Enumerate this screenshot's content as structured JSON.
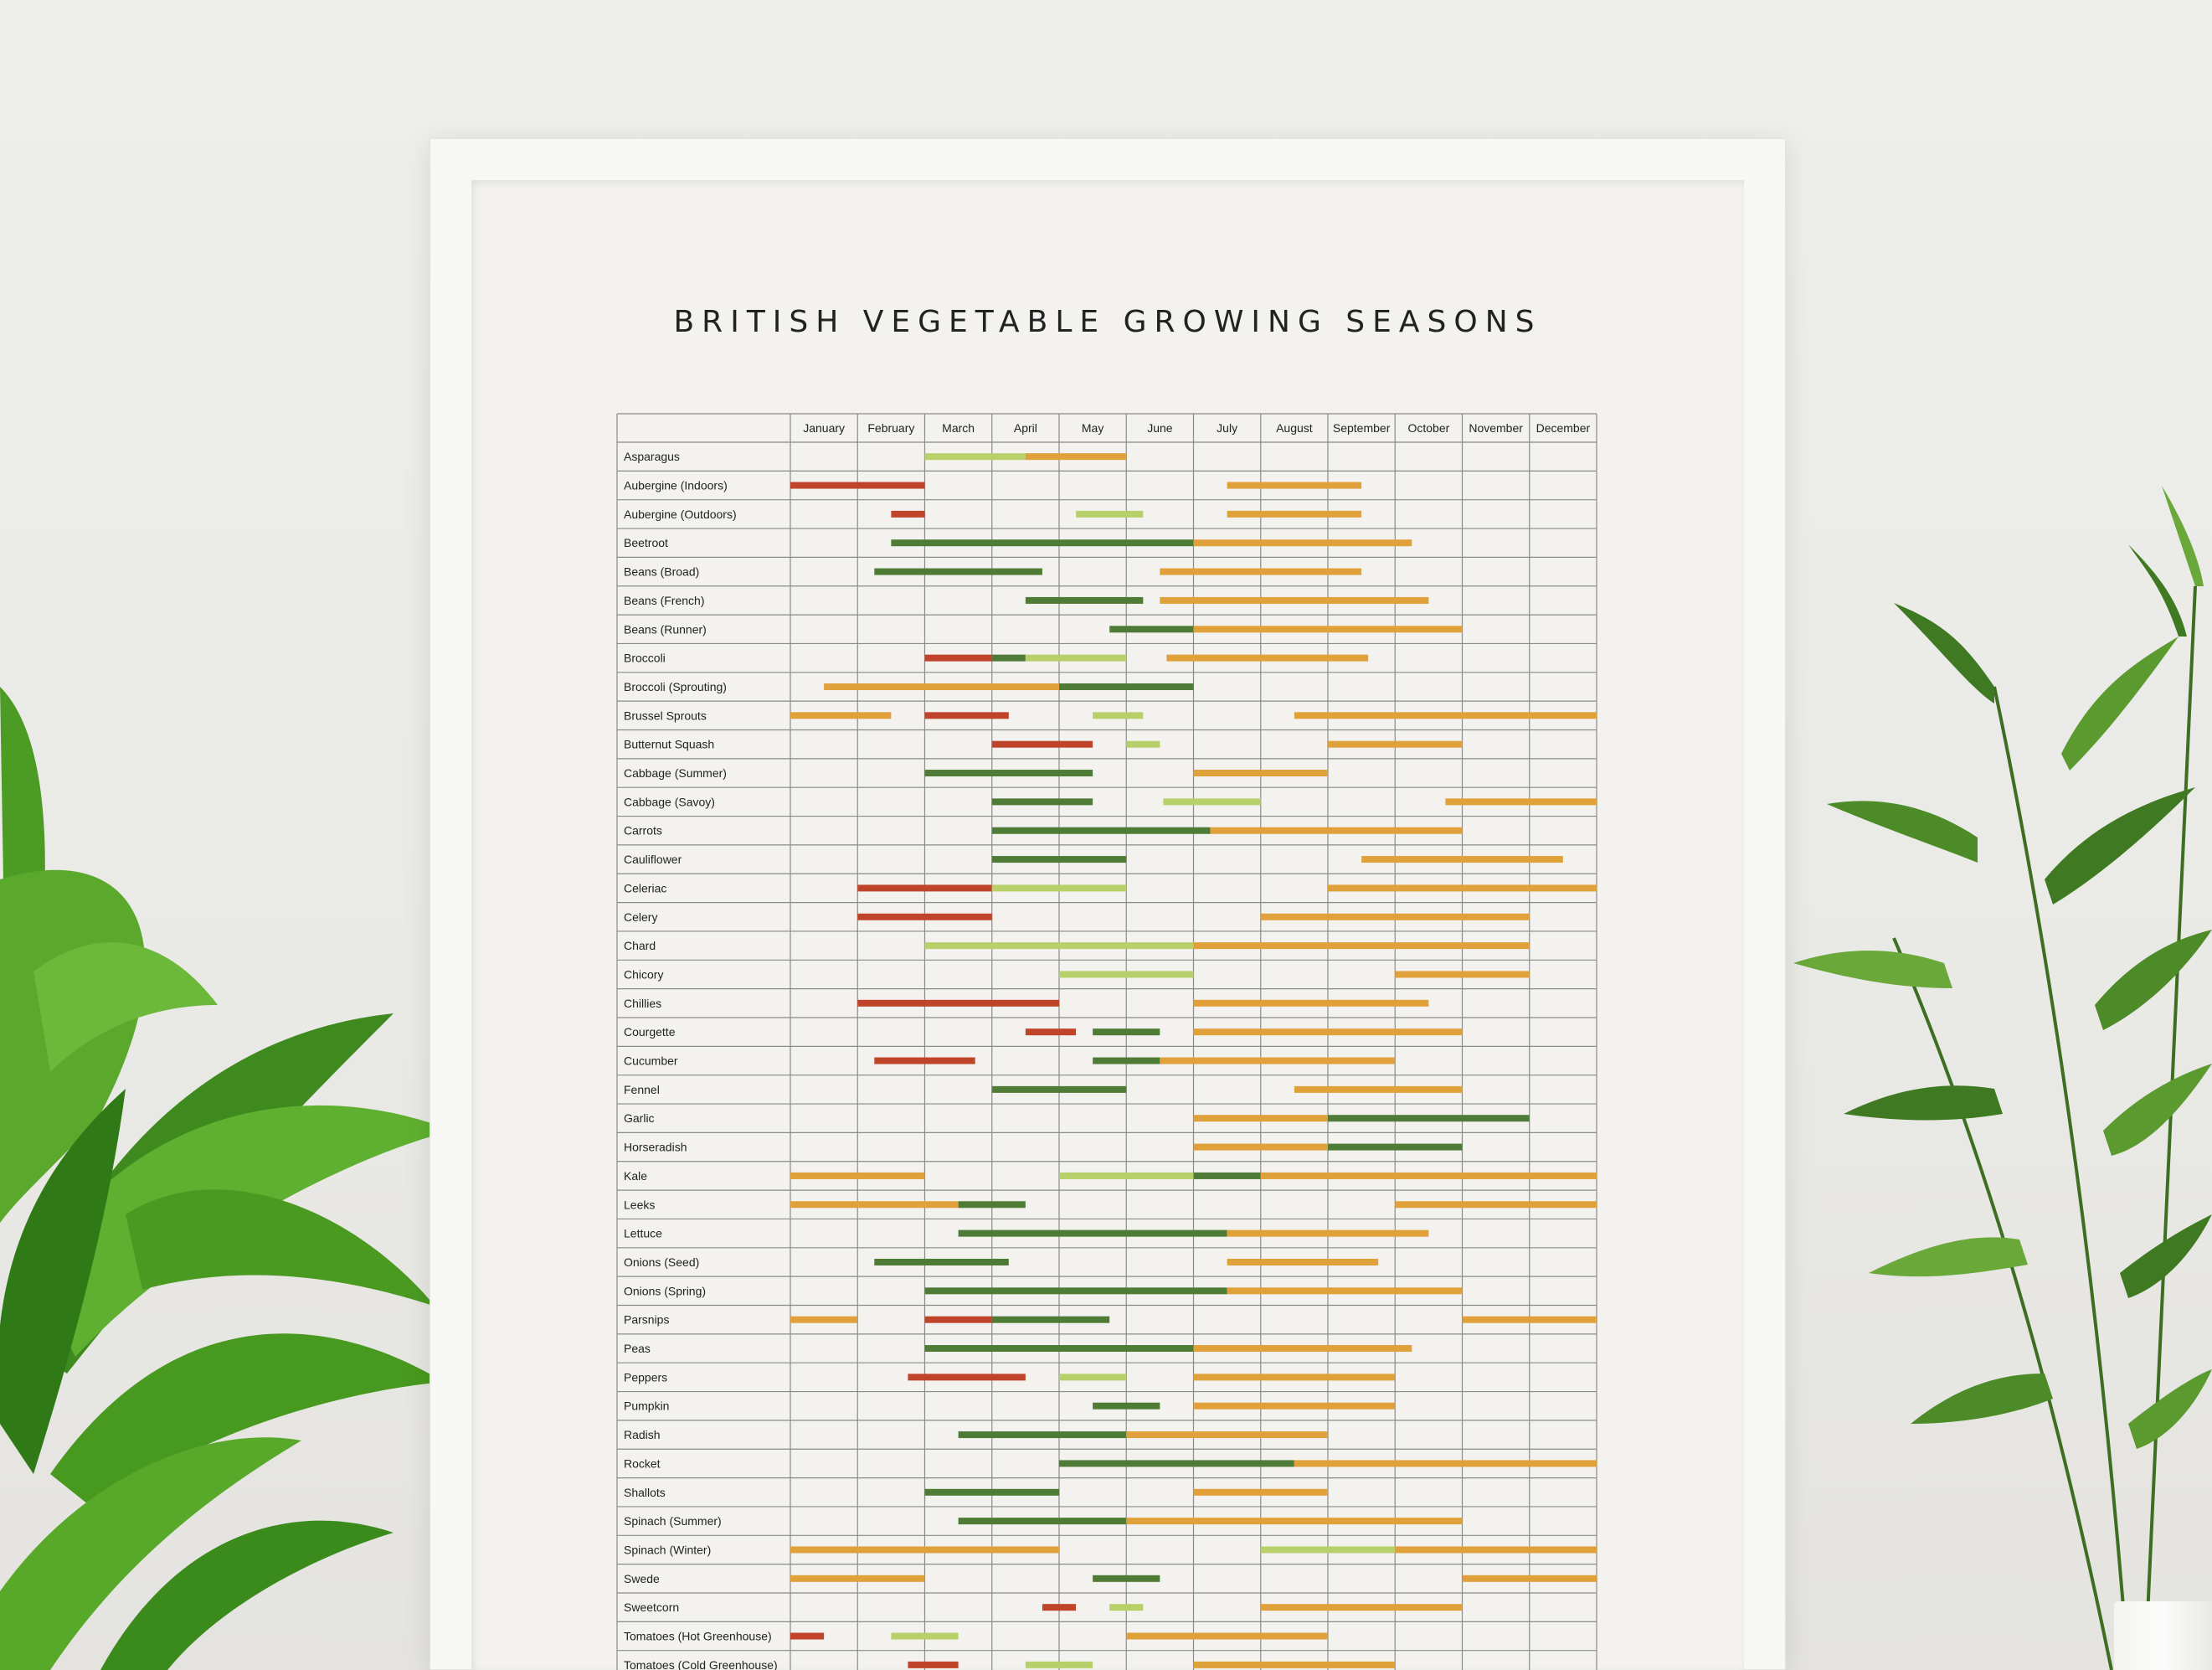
{
  "poster": {
    "title": "BRITISH VEGETABLE GROWING SEASONS"
  },
  "colors": {
    "sow_indoors": "#c0442a",
    "sow_outdoors": "#b8d06a",
    "plant_out": "#4e7c36",
    "harvest": "#e0a03a",
    "grid": "#8a8a8a"
  },
  "chart_data": {
    "type": "table",
    "months": [
      "January",
      "February",
      "March",
      "April",
      "May",
      "June",
      "July",
      "August",
      "September",
      "October",
      "November",
      "December"
    ],
    "rows": [
      {
        "name": "Asparagus",
        "bars": [
          [
            "sow_outdoors",
            3.0,
            4.5
          ],
          [
            "harvest",
            4.5,
            6.0
          ]
        ]
      },
      {
        "name": "Aubergine (Indoors)",
        "bars": [
          [
            "sow_indoors",
            1.0,
            3.0
          ],
          [
            "harvest",
            7.5,
            9.5
          ]
        ]
      },
      {
        "name": "Aubergine (Outdoors)",
        "bars": [
          [
            "sow_indoors",
            2.5,
            3.0
          ],
          [
            "sow_outdoors",
            5.25,
            6.25
          ],
          [
            "harvest",
            7.5,
            9.5
          ]
        ]
      },
      {
        "name": "Beetroot",
        "bars": [
          [
            "plant_out",
            2.5,
            7.0
          ],
          [
            "harvest",
            7.0,
            10.25
          ]
        ]
      },
      {
        "name": "Beans (Broad)",
        "bars": [
          [
            "plant_out",
            2.25,
            4.75
          ],
          [
            "harvest",
            6.5,
            9.5
          ]
        ]
      },
      {
        "name": "Beans (French)",
        "bars": [
          [
            "plant_out",
            4.5,
            6.25
          ],
          [
            "harvest",
            6.5,
            10.5
          ]
        ]
      },
      {
        "name": "Beans (Runner)",
        "bars": [
          [
            "plant_out",
            5.75,
            7.0
          ],
          [
            "harvest",
            7.0,
            11.0
          ]
        ]
      },
      {
        "name": "Broccoli",
        "bars": [
          [
            "sow_indoors",
            3.0,
            4.0
          ],
          [
            "plant_out",
            4.0,
            4.5
          ],
          [
            "sow_outdoors",
            4.5,
            6.0
          ],
          [
            "harvest",
            6.6,
            9.6
          ]
        ]
      },
      {
        "name": "Broccoli (Sprouting)",
        "bars": [
          [
            "harvest",
            1.5,
            5.0
          ],
          [
            "plant_out",
            5.0,
            7.0
          ]
        ]
      },
      {
        "name": "Brussel Sprouts",
        "bars": [
          [
            "harvest",
            1.0,
            2.5
          ],
          [
            "sow_indoors",
            3.0,
            4.25
          ],
          [
            "sow_outdoors",
            5.5,
            6.25
          ],
          [
            "harvest",
            8.5,
            13.0
          ]
        ]
      },
      {
        "name": "Butternut Squash",
        "bars": [
          [
            "sow_indoors",
            4.0,
            5.5
          ],
          [
            "sow_outdoors",
            6.0,
            6.5
          ],
          [
            "harvest",
            9.0,
            11.0
          ]
        ]
      },
      {
        "name": "Cabbage (Summer)",
        "bars": [
          [
            "plant_out",
            3.0,
            5.5
          ],
          [
            "harvest",
            7.0,
            9.0
          ]
        ]
      },
      {
        "name": "Cabbage (Savoy)",
        "bars": [
          [
            "plant_out",
            4.0,
            5.5
          ],
          [
            "sow_outdoors",
            6.55,
            8.0
          ],
          [
            "harvest",
            10.75,
            13.0
          ]
        ]
      },
      {
        "name": "Carrots",
        "bars": [
          [
            "plant_out",
            4.0,
            7.25
          ],
          [
            "harvest",
            7.25,
            11.0
          ]
        ]
      },
      {
        "name": "Cauliflower",
        "bars": [
          [
            "plant_out",
            4.0,
            6.0
          ],
          [
            "harvest",
            9.5,
            12.5
          ]
        ]
      },
      {
        "name": "Celeriac",
        "bars": [
          [
            "sow_indoors",
            2.0,
            4.0
          ],
          [
            "sow_outdoors",
            4.0,
            6.0
          ],
          [
            "harvest",
            9.0,
            13.0
          ]
        ]
      },
      {
        "name": "Celery",
        "bars": [
          [
            "sow_indoors",
            2.0,
            4.0
          ],
          [
            "harvest",
            8.0,
            12.0
          ]
        ]
      },
      {
        "name": "Chard",
        "bars": [
          [
            "sow_outdoors",
            3.0,
            7.0
          ],
          [
            "harvest",
            7.0,
            12.0
          ]
        ]
      },
      {
        "name": "Chicory",
        "bars": [
          [
            "sow_outdoors",
            5.0,
            7.0
          ],
          [
            "harvest",
            10.0,
            12.0
          ]
        ]
      },
      {
        "name": "Chillies",
        "bars": [
          [
            "sow_indoors",
            2.0,
            5.0
          ],
          [
            "harvest",
            7.0,
            10.5
          ]
        ]
      },
      {
        "name": "Courgette",
        "bars": [
          [
            "sow_indoors",
            4.5,
            5.25
          ],
          [
            "plant_out",
            5.5,
            6.5
          ],
          [
            "harvest",
            7.0,
            11.0
          ]
        ]
      },
      {
        "name": "Cucumber",
        "bars": [
          [
            "sow_indoors",
            2.25,
            3.75
          ],
          [
            "plant_out",
            5.5,
            6.5
          ],
          [
            "harvest",
            6.5,
            10.0
          ]
        ]
      },
      {
        "name": "Fennel",
        "bars": [
          [
            "plant_out",
            4.0,
            6.0
          ],
          [
            "harvest",
            8.5,
            11.0
          ]
        ]
      },
      {
        "name": "Garlic",
        "bars": [
          [
            "harvest",
            7.0,
            9.0
          ],
          [
            "plant_out",
            9.0,
            12.0
          ]
        ]
      },
      {
        "name": "Horseradish",
        "bars": [
          [
            "harvest",
            7.0,
            9.0
          ],
          [
            "plant_out",
            9.0,
            11.0
          ]
        ]
      },
      {
        "name": "Kale",
        "bars": [
          [
            "harvest",
            1.0,
            3.0
          ],
          [
            "sow_outdoors",
            5.0,
            7.0
          ],
          [
            "plant_out",
            7.0,
            8.0
          ],
          [
            "harvest",
            8.0,
            13.0
          ]
        ]
      },
      {
        "name": "Leeks",
        "bars": [
          [
            "harvest",
            1.0,
            3.5
          ],
          [
            "plant_out",
            3.5,
            4.5
          ],
          [
            "harvest",
            10.0,
            13.0
          ]
        ]
      },
      {
        "name": "Lettuce",
        "bars": [
          [
            "plant_out",
            3.5,
            7.5
          ],
          [
            "harvest",
            7.5,
            10.5
          ]
        ]
      },
      {
        "name": "Onions (Seed)",
        "bars": [
          [
            "plant_out",
            2.25,
            4.25
          ],
          [
            "harvest",
            7.5,
            9.75
          ]
        ]
      },
      {
        "name": "Onions (Spring)",
        "bars": [
          [
            "plant_out",
            3.0,
            7.5
          ],
          [
            "harvest",
            7.5,
            11.0
          ]
        ]
      },
      {
        "name": "Parsnips",
        "bars": [
          [
            "harvest",
            1.0,
            2.0
          ],
          [
            "sow_indoors",
            3.0,
            4.0
          ],
          [
            "plant_out",
            4.0,
            5.75
          ],
          [
            "harvest",
            11.0,
            13.0
          ]
        ]
      },
      {
        "name": "Peas",
        "bars": [
          [
            "plant_out",
            3.0,
            7.0
          ],
          [
            "harvest",
            7.0,
            10.25
          ]
        ]
      },
      {
        "name": "Peppers",
        "bars": [
          [
            "sow_indoors",
            2.75,
            4.5
          ],
          [
            "sow_outdoors",
            5.0,
            6.0
          ],
          [
            "harvest",
            7.0,
            10.0
          ]
        ]
      },
      {
        "name": "Pumpkin",
        "bars": [
          [
            "plant_out",
            5.5,
            6.5
          ],
          [
            "harvest",
            7.0,
            10.0
          ]
        ]
      },
      {
        "name": "Radish",
        "bars": [
          [
            "plant_out",
            3.5,
            6.0
          ],
          [
            "harvest",
            6.0,
            9.0
          ]
        ]
      },
      {
        "name": "Rocket",
        "bars": [
          [
            "plant_out",
            5.0,
            8.5
          ],
          [
            "harvest",
            8.5,
            13.0
          ]
        ]
      },
      {
        "name": "Shallots",
        "bars": [
          [
            "plant_out",
            3.0,
            5.0
          ],
          [
            "harvest",
            7.0,
            9.0
          ]
        ]
      },
      {
        "name": "Spinach (Summer)",
        "bars": [
          [
            "plant_out",
            3.5,
            6.0
          ],
          [
            "harvest",
            6.0,
            11.0
          ]
        ]
      },
      {
        "name": "Spinach (Winter)",
        "bars": [
          [
            "harvest",
            1.0,
            5.0
          ],
          [
            "sow_outdoors",
            8.0,
            10.0
          ],
          [
            "harvest",
            10.0,
            13.0
          ]
        ]
      },
      {
        "name": "Swede",
        "bars": [
          [
            "harvest",
            1.0,
            3.0
          ],
          [
            "plant_out",
            5.5,
            6.5
          ],
          [
            "harvest",
            11.0,
            13.0
          ]
        ]
      },
      {
        "name": "Sweetcorn",
        "bars": [
          [
            "sow_indoors",
            4.75,
            5.25
          ],
          [
            "sow_outdoors",
            5.75,
            6.25
          ],
          [
            "harvest",
            8.0,
            11.0
          ]
        ]
      },
      {
        "name": "Tomatoes (Hot Greenhouse)",
        "bars": [
          [
            "sow_indoors",
            1.0,
            1.5
          ],
          [
            "sow_outdoors",
            2.5,
            3.5
          ],
          [
            "harvest",
            6.0,
            9.0
          ]
        ]
      },
      {
        "name": "Tomatoes (Cold Greenhouse)",
        "bars": [
          [
            "sow_indoors",
            2.75,
            3.5
          ],
          [
            "sow_outdoors",
            4.5,
            5.5
          ],
          [
            "harvest",
            7.0,
            10.0
          ]
        ]
      }
    ]
  }
}
